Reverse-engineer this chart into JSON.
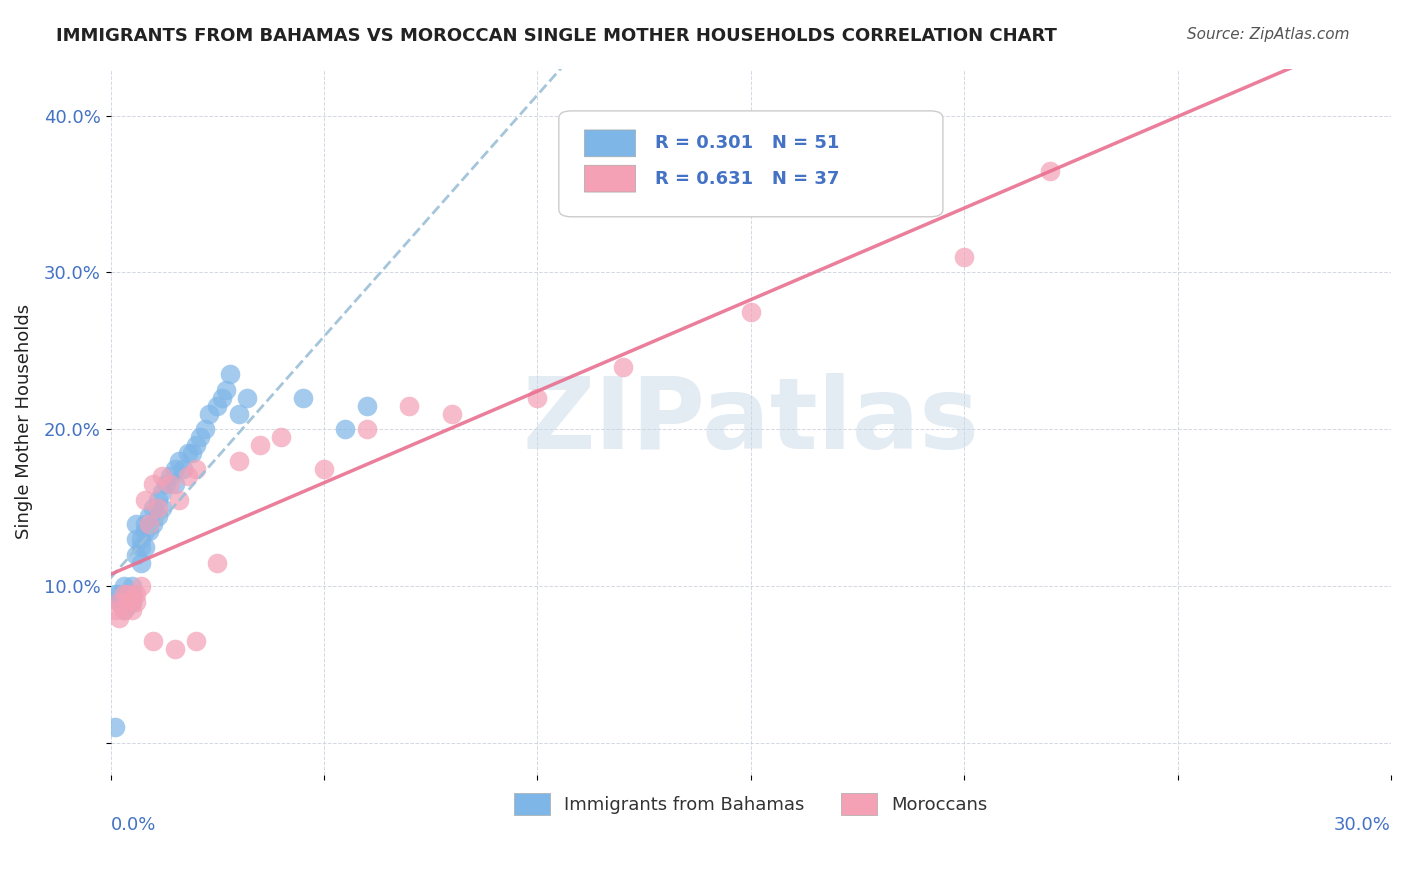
{
  "title": "IMMIGRANTS FROM BAHAMAS VS MOROCCAN SINGLE MOTHER HOUSEHOLDS CORRELATION CHART",
  "source": "Source: ZipAtlas.com",
  "ylabel": "Single Mother Households",
  "y_ticks": [
    0.0,
    0.1,
    0.2,
    0.3,
    0.4
  ],
  "y_tick_labels": [
    "",
    "10.0%",
    "20.0%",
    "30.0%",
    "40.0%"
  ],
  "x_range": [
    0.0,
    0.3
  ],
  "y_range": [
    -0.02,
    0.43
  ],
  "blue_R": 0.301,
  "blue_N": 51,
  "pink_R": 0.631,
  "pink_N": 37,
  "blue_color": "#7EB6E8",
  "pink_color": "#F4A0B5",
  "blue_line_color": "#9BBFD8",
  "pink_line_color": "#E87090",
  "legend_label_blue": "Immigrants from Bahamas",
  "legend_label_pink": "Moroccans",
  "background_color": "#ffffff",
  "watermark_text": "ZIPatlas",
  "watermark_color": "#C8D8E8",
  "blue_x": [
    0.001,
    0.002,
    0.002,
    0.003,
    0.003,
    0.003,
    0.004,
    0.004,
    0.004,
    0.005,
    0.005,
    0.005,
    0.006,
    0.006,
    0.006,
    0.007,
    0.007,
    0.007,
    0.008,
    0.008,
    0.008,
    0.009,
    0.009,
    0.01,
    0.01,
    0.011,
    0.011,
    0.012,
    0.012,
    0.013,
    0.014,
    0.015,
    0.015,
    0.016,
    0.017,
    0.018,
    0.019,
    0.02,
    0.021,
    0.022,
    0.023,
    0.025,
    0.026,
    0.027,
    0.028,
    0.03,
    0.032,
    0.045,
    0.055,
    0.06,
    0.001
  ],
  "blue_y": [
    0.095,
    0.09,
    0.095,
    0.1,
    0.085,
    0.09,
    0.095,
    0.088,
    0.092,
    0.1,
    0.095,
    0.09,
    0.14,
    0.13,
    0.12,
    0.13,
    0.125,
    0.115,
    0.14,
    0.135,
    0.125,
    0.145,
    0.135,
    0.15,
    0.14,
    0.155,
    0.145,
    0.16,
    0.15,
    0.165,
    0.17,
    0.175,
    0.165,
    0.18,
    0.175,
    0.185,
    0.185,
    0.19,
    0.195,
    0.2,
    0.21,
    0.215,
    0.22,
    0.225,
    0.235,
    0.21,
    0.22,
    0.22,
    0.2,
    0.215,
    0.01
  ],
  "pink_x": [
    0.001,
    0.002,
    0.002,
    0.003,
    0.003,
    0.004,
    0.004,
    0.005,
    0.005,
    0.006,
    0.006,
    0.007,
    0.008,
    0.009,
    0.01,
    0.011,
    0.012,
    0.014,
    0.016,
    0.018,
    0.02,
    0.025,
    0.03,
    0.035,
    0.04,
    0.05,
    0.06,
    0.07,
    0.08,
    0.1,
    0.12,
    0.15,
    0.01,
    0.015,
    0.02,
    0.2,
    0.22
  ],
  "pink_y": [
    0.085,
    0.08,
    0.09,
    0.085,
    0.095,
    0.09,
    0.095,
    0.085,
    0.092,
    0.09,
    0.095,
    0.1,
    0.155,
    0.14,
    0.165,
    0.15,
    0.17,
    0.165,
    0.155,
    0.17,
    0.175,
    0.115,
    0.18,
    0.19,
    0.195,
    0.175,
    0.2,
    0.215,
    0.21,
    0.22,
    0.24,
    0.275,
    0.065,
    0.06,
    0.065,
    0.31,
    0.365
  ]
}
